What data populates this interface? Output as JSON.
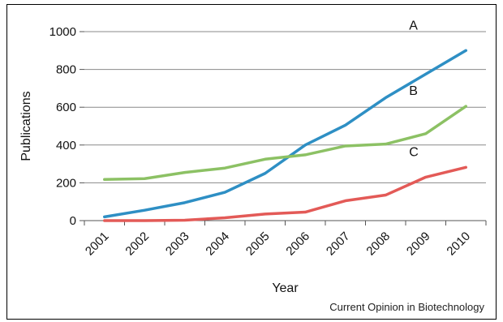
{
  "chart_data": {
    "type": "line",
    "title": "",
    "xlabel": "Year",
    "ylabel": "Publications",
    "categories": [
      "2001",
      "2002",
      "2003",
      "2004",
      "2005",
      "2006",
      "2007",
      "2008",
      "2009",
      "2010"
    ],
    "ylim": [
      0,
      1000
    ],
    "yticks": [
      0,
      200,
      400,
      600,
      800,
      1000
    ],
    "grid": true,
    "series": [
      {
        "name": "A",
        "color": "#2e8fc4",
        "values": [
          20,
          55,
          95,
          150,
          250,
          400,
          505,
          650,
          775,
          900
        ]
      },
      {
        "name": "B",
        "color": "#8cc164",
        "values": [
          218,
          222,
          255,
          278,
          325,
          348,
          395,
          405,
          460,
          605
        ]
      },
      {
        "name": "C",
        "color": "#e35a57",
        "values": [
          0,
          0,
          2,
          15,
          35,
          45,
          105,
          135,
          230,
          282
        ]
      }
    ]
  },
  "credit": "Current Opinion in Biotechnology"
}
